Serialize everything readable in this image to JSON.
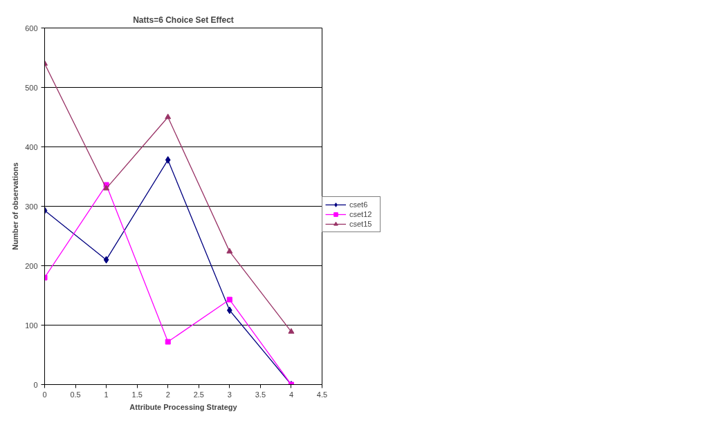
{
  "chart_data": {
    "type": "line",
    "title": "Natts=6 Choice Set Effect",
    "xlabel": "Attribute Processing Strategy",
    "ylabel": "Number of observations",
    "x": [
      0,
      1,
      2,
      3,
      4
    ],
    "series": [
      {
        "name": "cset6",
        "color": "#000080",
        "marker": "diamond",
        "values": [
          293,
          210,
          378,
          125,
          0
        ]
      },
      {
        "name": "cset12",
        "color": "#ff00ff",
        "marker": "square",
        "values": [
          180,
          336,
          72,
          143,
          0
        ]
      },
      {
        "name": "cset15",
        "color": "#993366",
        "marker": "triangle",
        "values": [
          540,
          330,
          450,
          224,
          89
        ]
      }
    ],
    "xlim": [
      0,
      4.5
    ],
    "xticks": [
      0,
      0.5,
      1,
      1.5,
      2,
      2.5,
      3,
      3.5,
      4,
      4.5
    ],
    "ylim": [
      0,
      600
    ],
    "yticks": [
      0,
      100,
      200,
      300,
      400,
      500,
      600
    ],
    "grid": "y",
    "legend": "right",
    "line_style": "solid"
  }
}
